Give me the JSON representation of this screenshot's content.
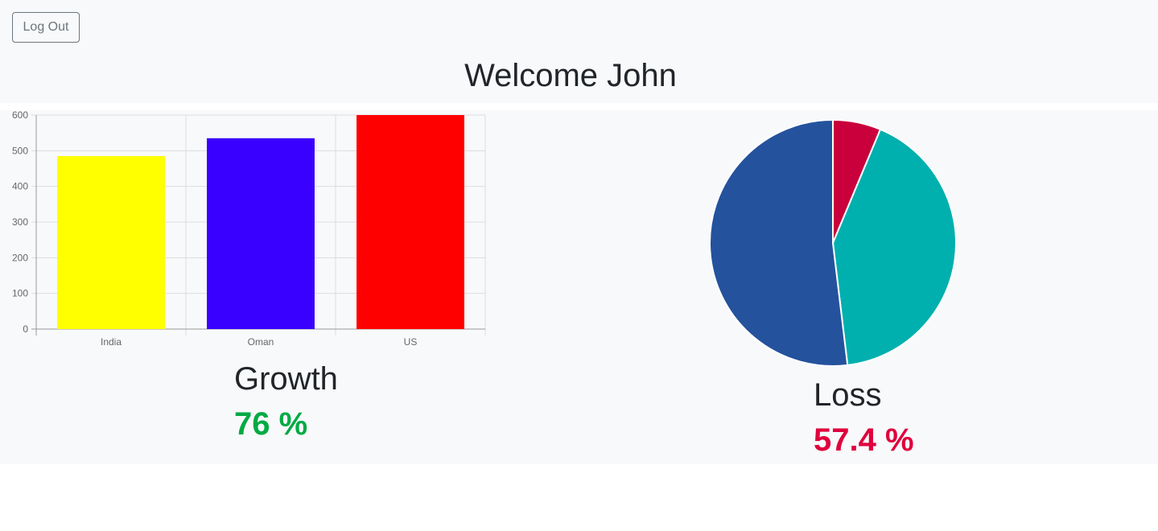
{
  "header": {
    "logout_label": "Log Out",
    "welcome_text": "Welcome John"
  },
  "growth": {
    "title": "Growth",
    "value": "76 %",
    "color": "#00aa44"
  },
  "loss": {
    "title": "Loss",
    "value": "57.4 %",
    "color": "#e0003c"
  },
  "chart_data": [
    {
      "type": "bar",
      "categories": [
        "India",
        "Oman",
        "US"
      ],
      "values": [
        485,
        535,
        600
      ],
      "colors": [
        "#ffff00",
        "#3a00ff",
        "#ff0000"
      ],
      "ylim": [
        0,
        600
      ],
      "yticks": [
        0,
        100,
        200,
        300,
        400,
        500,
        600
      ],
      "grid": true,
      "title": "",
      "xlabel": "",
      "ylabel": ""
    },
    {
      "type": "pie",
      "values": [
        6.3,
        41.8,
        51.9
      ],
      "colors": [
        "#c9003c",
        "#00b0ae",
        "#24529d"
      ],
      "start": "top, clockwise"
    }
  ]
}
